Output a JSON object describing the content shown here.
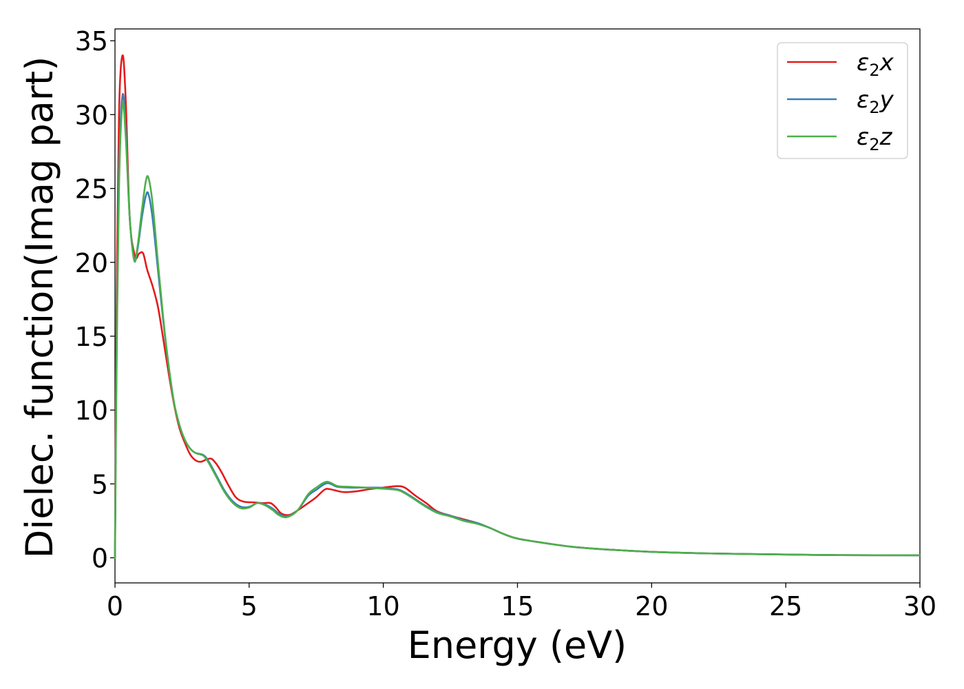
{
  "chart_data": {
    "type": "line",
    "xlabel": "Energy (eV)",
    "ylabel": "Dielec. function(Imag part)",
    "xlim": [
      0,
      30
    ],
    "ylim": [
      -1.7,
      35.8
    ],
    "xticks": [
      0,
      5,
      10,
      15,
      20,
      25,
      30
    ],
    "yticks": [
      0,
      5,
      10,
      15,
      20,
      25,
      30,
      35
    ],
    "grid": false,
    "legend_position": "top-right",
    "series": [
      {
        "name": "ε₂x",
        "legend": {
          "symbol": "ε",
          "sub": "2",
          "axis": "x"
        },
        "color": "#e41a1c",
        "points": [
          [
            0,
            0
          ],
          [
            0.05,
            15
          ],
          [
            0.15,
            30
          ],
          [
            0.28,
            34
          ],
          [
            0.4,
            31
          ],
          [
            0.55,
            23
          ],
          [
            0.75,
            20.4
          ],
          [
            0.9,
            20.6
          ],
          [
            1.05,
            20.6
          ],
          [
            1.2,
            19.5
          ],
          [
            1.4,
            18.4
          ],
          [
            1.6,
            17
          ],
          [
            1.8,
            14.8
          ],
          [
            2,
            12.5
          ],
          [
            2.2,
            10.4
          ],
          [
            2.4,
            8.8
          ],
          [
            2.6,
            7.8
          ],
          [
            2.8,
            7
          ],
          [
            3,
            6.6
          ],
          [
            3.2,
            6.5
          ],
          [
            3.4,
            6.65
          ],
          [
            3.6,
            6.7
          ],
          [
            3.8,
            6.3
          ],
          [
            4,
            5.7
          ],
          [
            4.2,
            5
          ],
          [
            4.5,
            4.1
          ],
          [
            4.8,
            3.8
          ],
          [
            5.2,
            3.75
          ],
          [
            5.5,
            3.7
          ],
          [
            5.8,
            3.7
          ],
          [
            6,
            3.4
          ],
          [
            6.2,
            3
          ],
          [
            6.5,
            2.9
          ],
          [
            6.8,
            3.2
          ],
          [
            7.2,
            3.7
          ],
          [
            7.5,
            4.1
          ],
          [
            7.8,
            4.6
          ],
          [
            8,
            4.65
          ],
          [
            8.5,
            4.45
          ],
          [
            9,
            4.5
          ],
          [
            9.5,
            4.65
          ],
          [
            10,
            4.75
          ],
          [
            10.5,
            4.85
          ],
          [
            10.8,
            4.75
          ],
          [
            11.2,
            4.2
          ],
          [
            11.6,
            3.7
          ],
          [
            12,
            3.15
          ],
          [
            12.5,
            2.85
          ],
          [
            13,
            2.6
          ],
          [
            13.5,
            2.35
          ],
          [
            14,
            2
          ],
          [
            14.5,
            1.6
          ],
          [
            15,
            1.3
          ],
          [
            16,
            1
          ],
          [
            17,
            0.75
          ],
          [
            18,
            0.6
          ],
          [
            20,
            0.4
          ],
          [
            22,
            0.3
          ],
          [
            25,
            0.22
          ],
          [
            27,
            0.18
          ],
          [
            30,
            0.17
          ]
        ]
      },
      {
        "name": "ε₂y",
        "legend": {
          "symbol": "ε",
          "sub": "2",
          "axis": "y"
        },
        "color": "#377eb8",
        "points": [
          [
            0,
            0
          ],
          [
            0.05,
            12
          ],
          [
            0.15,
            26
          ],
          [
            0.28,
            31.3
          ],
          [
            0.4,
            29
          ],
          [
            0.55,
            23
          ],
          [
            0.72,
            20.2
          ],
          [
            0.85,
            21
          ],
          [
            1,
            23
          ],
          [
            1.15,
            24.5
          ],
          [
            1.25,
            24.6
          ],
          [
            1.4,
            23
          ],
          [
            1.6,
            19.5
          ],
          [
            1.8,
            16
          ],
          [
            2,
            13
          ],
          [
            2.2,
            10.5
          ],
          [
            2.4,
            9
          ],
          [
            2.6,
            8
          ],
          [
            2.8,
            7.4
          ],
          [
            3,
            7.1
          ],
          [
            3.3,
            6.95
          ],
          [
            3.5,
            6.5
          ],
          [
            3.8,
            5.5
          ],
          [
            4.1,
            4.5
          ],
          [
            4.4,
            3.8
          ],
          [
            4.7,
            3.45
          ],
          [
            5,
            3.45
          ],
          [
            5.3,
            3.7
          ],
          [
            5.6,
            3.6
          ],
          [
            5.9,
            3.3
          ],
          [
            6.1,
            3
          ],
          [
            6.4,
            2.8
          ],
          [
            6.8,
            3.2
          ],
          [
            7.2,
            4.2
          ],
          [
            7.5,
            4.6
          ],
          [
            7.9,
            5.05
          ],
          [
            8.3,
            4.8
          ],
          [
            8.8,
            4.75
          ],
          [
            9.3,
            4.75
          ],
          [
            9.8,
            4.75
          ],
          [
            10.2,
            4.7
          ],
          [
            10.6,
            4.6
          ],
          [
            11,
            4.2
          ],
          [
            11.5,
            3.6
          ],
          [
            12,
            3.1
          ],
          [
            12.5,
            2.85
          ],
          [
            13,
            2.55
          ],
          [
            13.5,
            2.35
          ],
          [
            14,
            2
          ],
          [
            14.5,
            1.6
          ],
          [
            15,
            1.3
          ],
          [
            16,
            1
          ],
          [
            17,
            0.75
          ],
          [
            18,
            0.6
          ],
          [
            20,
            0.4
          ],
          [
            22,
            0.3
          ],
          [
            25,
            0.22
          ],
          [
            27,
            0.18
          ],
          [
            30,
            0.17
          ]
        ]
      },
      {
        "name": "ε₂z",
        "legend": {
          "symbol": "ε",
          "sub": "2",
          "axis": "z"
        },
        "color": "#4daf4a",
        "points": [
          [
            0,
            0
          ],
          [
            0.05,
            11
          ],
          [
            0.15,
            25
          ],
          [
            0.28,
            30.7
          ],
          [
            0.4,
            28.5
          ],
          [
            0.55,
            23
          ],
          [
            0.72,
            20.1
          ],
          [
            0.85,
            21.2
          ],
          [
            1,
            23.5
          ],
          [
            1.15,
            25.5
          ],
          [
            1.25,
            25.7
          ],
          [
            1.4,
            24
          ],
          [
            1.6,
            20
          ],
          [
            1.8,
            16.2
          ],
          [
            2,
            13
          ],
          [
            2.2,
            10.5
          ],
          [
            2.4,
            9
          ],
          [
            2.6,
            8
          ],
          [
            2.8,
            7.4
          ],
          [
            3,
            7.1
          ],
          [
            3.3,
            6.9
          ],
          [
            3.5,
            6.4
          ],
          [
            3.8,
            5.4
          ],
          [
            4.1,
            4.4
          ],
          [
            4.4,
            3.7
          ],
          [
            4.7,
            3.35
          ],
          [
            5,
            3.4
          ],
          [
            5.3,
            3.7
          ],
          [
            5.6,
            3.55
          ],
          [
            5.9,
            3.2
          ],
          [
            6.1,
            2.9
          ],
          [
            6.4,
            2.75
          ],
          [
            6.8,
            3.2
          ],
          [
            7.2,
            4.3
          ],
          [
            7.5,
            4.75
          ],
          [
            7.9,
            5.15
          ],
          [
            8.3,
            4.85
          ],
          [
            8.8,
            4.8
          ],
          [
            9.3,
            4.75
          ],
          [
            9.8,
            4.7
          ],
          [
            10.2,
            4.65
          ],
          [
            10.6,
            4.55
          ],
          [
            11,
            4.15
          ],
          [
            11.5,
            3.55
          ],
          [
            12,
            3.05
          ],
          [
            12.5,
            2.8
          ],
          [
            13,
            2.5
          ],
          [
            13.5,
            2.3
          ],
          [
            14,
            2
          ],
          [
            14.5,
            1.6
          ],
          [
            15,
            1.3
          ],
          [
            16,
            1
          ],
          [
            17,
            0.75
          ],
          [
            18,
            0.6
          ],
          [
            20,
            0.4
          ],
          [
            22,
            0.3
          ],
          [
            25,
            0.22
          ],
          [
            27,
            0.18
          ],
          [
            30,
            0.17
          ]
        ]
      }
    ]
  }
}
